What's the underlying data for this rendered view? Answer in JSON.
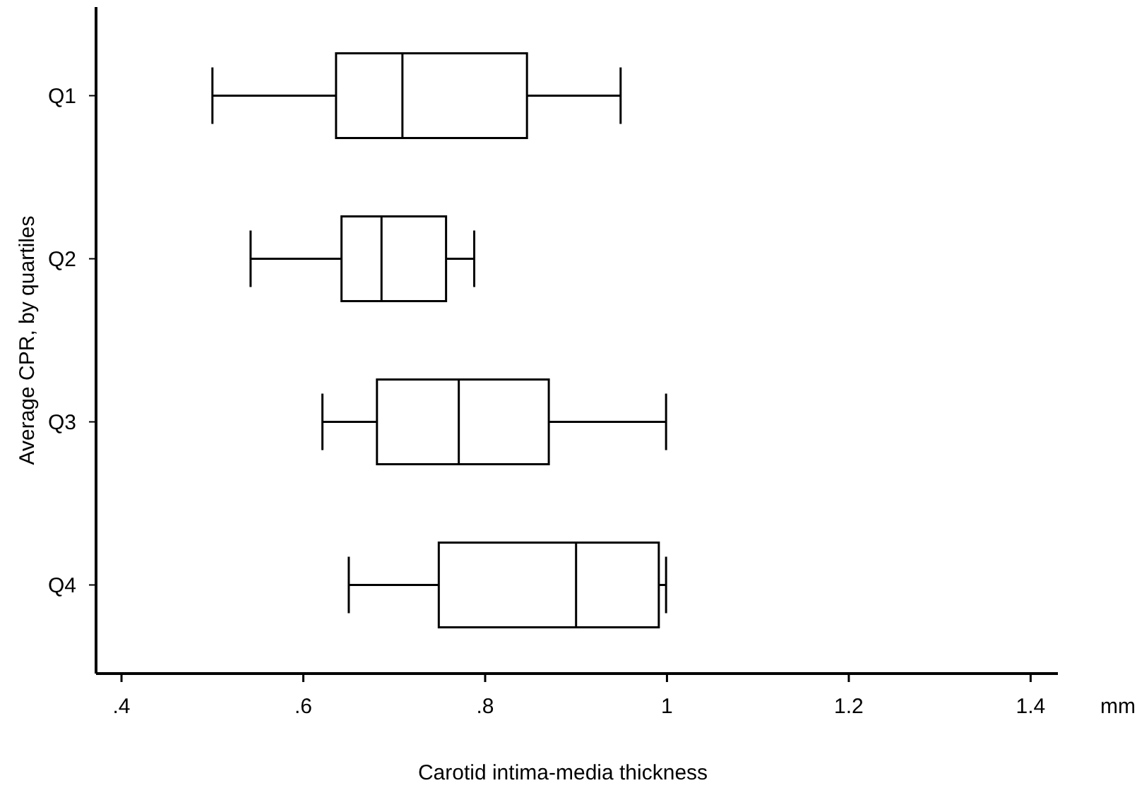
{
  "chart_data": {
    "type": "box",
    "orientation": "horizontal",
    "xlabel": "Carotid intima-media thickness",
    "ylabel": "Average CPR, by quartiles",
    "annotations": [
      "mm"
    ],
    "categories": [
      "Q1",
      "Q2",
      "Q3",
      "Q4"
    ],
    "boxes": [
      {
        "low": 0.5,
        "q1": 0.636,
        "median": 0.709,
        "q3": 0.846,
        "high": 0.949
      },
      {
        "low": 0.542,
        "q1": 0.642,
        "median": 0.686,
        "q3": 0.757,
        "high": 0.788
      },
      {
        "low": 0.621,
        "q1": 0.681,
        "median": 0.771,
        "q3": 0.87,
        "high": 0.999
      },
      {
        "low": 0.65,
        "q1": 0.749,
        "median": 0.9,
        "q3": 0.991,
        "high": 0.999
      }
    ],
    "color": "#000000",
    "xlim": [
      0.372,
      1.43
    ],
    "xticks": [
      {
        "value": 0.4,
        "label": ".4"
      },
      {
        "value": 0.6,
        "label": ".6"
      },
      {
        "value": 0.8,
        "label": ".8"
      },
      {
        "value": 1,
        "label": "1"
      },
      {
        "value": 1.2,
        "label": "1.2"
      },
      {
        "value": 1.4,
        "label": "1.4"
      }
    ],
    "grid": false
  }
}
